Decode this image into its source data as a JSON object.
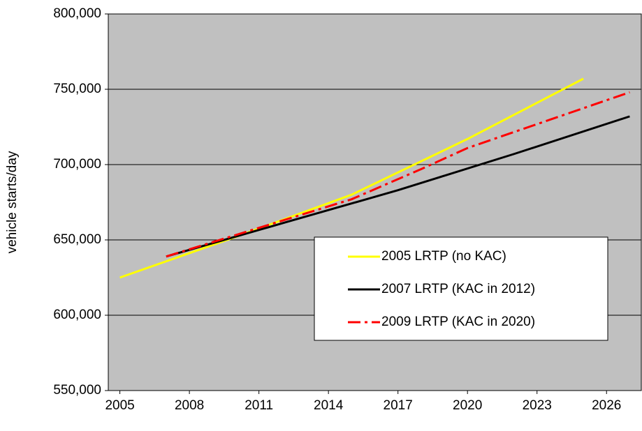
{
  "chart_data": {
    "type": "line",
    "y_label": "vehicle starts/day",
    "xlim": [
      2004.5,
      2027.5
    ],
    "xticks": [
      2005,
      2008,
      2011,
      2014,
      2017,
      2020,
      2023,
      2026
    ],
    "ylim": [
      550000,
      800000
    ],
    "yticks": [
      {
        "value": 550000,
        "label": "550,000"
      },
      {
        "value": 600000,
        "label": "600,000"
      },
      {
        "value": 650000,
        "label": "650,000"
      },
      {
        "value": 700000,
        "label": "700,000"
      },
      {
        "value": 750000,
        "label": "750,000"
      },
      {
        "value": 800000,
        "label": "800,000"
      }
    ],
    "grid": true,
    "legend": "lower right",
    "series": [
      {
        "name": "2005 LRTP (no KAC)",
        "color": "#ffff00",
        "dash": "solid",
        "x": [
          2005,
          2010,
          2015,
          2020,
          2025
        ],
        "values": [
          625000,
          652000,
          680000,
          717000,
          757000
        ]
      },
      {
        "name": "2007 LRTP (KAC in 2012)",
        "color": "#000000",
        "dash": "solid",
        "x": [
          2007,
          2012,
          2017,
          2022,
          2027
        ],
        "values": [
          639000,
          661000,
          683000,
          707000,
          732000
        ]
      },
      {
        "name": "2009 LRTP (KAC in 2020)",
        "color": "#ff0000",
        "dash": "dashdot",
        "x": [
          2007,
          2015,
          2018,
          2020,
          2027
        ],
        "values": [
          639000,
          677000,
          697000,
          711000,
          748000
        ]
      }
    ]
  }
}
